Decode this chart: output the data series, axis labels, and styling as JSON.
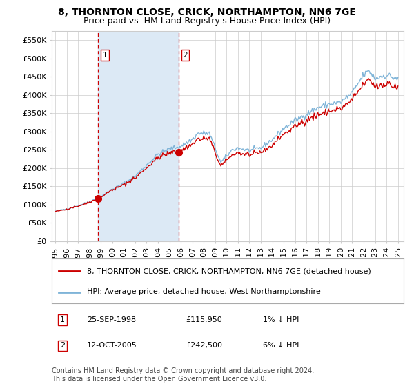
{
  "title": "8, THORNTON CLOSE, CRICK, NORTHAMPTON, NN6 7GE",
  "subtitle": "Price paid vs. HM Land Registry's House Price Index (HPI)",
  "legend_line1": "8, THORNTON CLOSE, CRICK, NORTHAMPTON, NN6 7GE (detached house)",
  "legend_line2": "HPI: Average price, detached house, West Northamptonshire",
  "footnote": "Contains HM Land Registry data © Crown copyright and database right 2024.\nThis data is licensed under the Open Government Licence v3.0.",
  "transaction1": {
    "label": "1",
    "date": "25-SEP-1998",
    "price": 115950,
    "note": "1% ↓ HPI",
    "x_year": 1998.73
  },
  "transaction2": {
    "label": "2",
    "date": "12-OCT-2005",
    "price": 242500,
    "note": "6% ↓ HPI",
    "x_year": 2005.79
  },
  "ylim": [
    0,
    575000
  ],
  "yticks": [
    0,
    50000,
    100000,
    150000,
    200000,
    250000,
    300000,
    350000,
    400000,
    450000,
    500000,
    550000
  ],
  "ytick_labels": [
    "£0",
    "£50K",
    "£100K",
    "£150K",
    "£200K",
    "£250K",
    "£300K",
    "£350K",
    "£400K",
    "£450K",
    "£500K",
    "£550K"
  ],
  "xlim_start": 1994.7,
  "xlim_end": 2025.5,
  "xticks": [
    1995,
    1996,
    1997,
    1998,
    1999,
    2000,
    2001,
    2002,
    2003,
    2004,
    2005,
    2006,
    2007,
    2008,
    2009,
    2010,
    2011,
    2012,
    2013,
    2014,
    2015,
    2016,
    2017,
    2018,
    2019,
    2020,
    2021,
    2022,
    2023,
    2024,
    2025
  ],
  "background_color": "#ffffff",
  "plot_bg_color": "#ffffff",
  "shaded_region_color": "#dce9f5",
  "grid_color": "#cccccc",
  "hpi_color": "#7fb4d8",
  "price_color": "#cc0000",
  "dashed_line_color": "#cc0000",
  "marker_color": "#cc0000",
  "title_fontsize": 10,
  "subtitle_fontsize": 9,
  "axis_fontsize": 8,
  "legend_fontsize": 8,
  "footnote_fontsize": 7
}
